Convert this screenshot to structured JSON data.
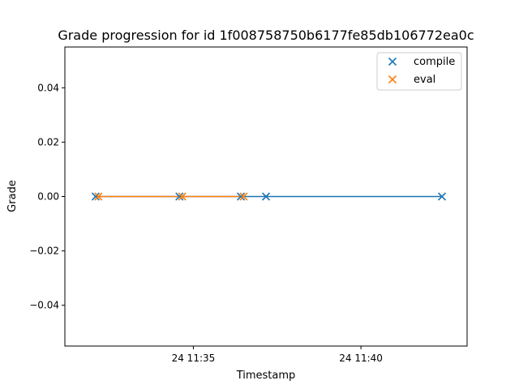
{
  "chart_data": {
    "type": "line",
    "title": "Grade progression for id 1f008758750b6177fe85db106772ea0c",
    "xlabel": "Timestamp",
    "ylabel": "Grade",
    "x_ticks": [
      "24 11:35",
      "24 11:40"
    ],
    "y_ticks": [
      "0.04",
      "0.02",
      "0.00",
      "−0.02",
      "−0.04"
    ],
    "y_tick_values": [
      0.04,
      0.02,
      0.0,
      -0.02,
      -0.04
    ],
    "ylim": [
      -0.055,
      0.055
    ],
    "legend_position": "top-right",
    "grid": false,
    "series": [
      {
        "name": "compile",
        "color": "#1f77b4",
        "marker": "x",
        "x": [
          "11:32:05",
          "11:34:35",
          "11:36:25",
          "11:37:10",
          "11:42:25"
        ],
        "values": [
          0,
          0,
          0,
          0,
          0
        ]
      },
      {
        "name": "eval",
        "color": "#ff7f0e",
        "marker": "x",
        "x": [
          "11:32:10",
          "11:34:40",
          "11:36:30"
        ],
        "values": [
          0,
          0,
          0
        ]
      }
    ]
  }
}
